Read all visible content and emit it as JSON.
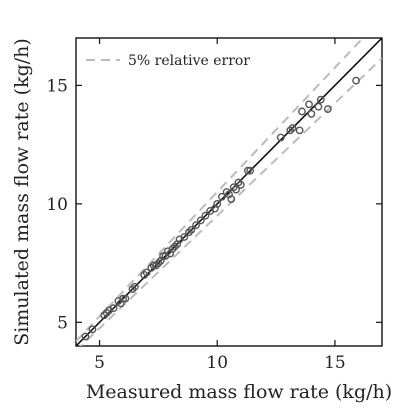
{
  "chart_data": {
    "type": "scatter",
    "title": "",
    "xlabel": "Measured mass flow rate (kg/h)",
    "ylabel": "Simulated mass flow rate (kg/h)",
    "xlim": [
      4,
      17
    ],
    "ylim": [
      4,
      17
    ],
    "xticks": [
      5,
      10,
      15
    ],
    "yticks": [
      5,
      10,
      15
    ],
    "tick_labels": {
      "x": [
        "5",
        "10",
        "15"
      ],
      "y": [
        "5",
        "10",
        "15"
      ]
    },
    "grid": false,
    "legend": {
      "placement": "top-left",
      "entries": [
        "5% relative error"
      ]
    },
    "reference_lines": [
      {
        "type": "identity",
        "slope": 1.0,
        "style": "solid",
        "color": "#111111"
      },
      {
        "type": "upper-bound",
        "slope": 1.05,
        "style": "dashed",
        "color": "#bbbbbb",
        "legend": "5% relative error"
      },
      {
        "type": "lower-bound",
        "slope": 0.95,
        "style": "dashed",
        "color": "#bbbbbb"
      }
    ],
    "series": [
      {
        "marker": "circle",
        "color": "#555555",
        "x": [
          4.4,
          4.7,
          5.2,
          5.3,
          5.4,
          5.6,
          5.8,
          5.9,
          6.0,
          6.1,
          6.4,
          6.5,
          6.9,
          7.0,
          7.2,
          7.3,
          7.4,
          7.5,
          7.6,
          7.7,
          7.8,
          7.9,
          8.0,
          8.1,
          8.2,
          8.3,
          8.4,
          8.6,
          8.8,
          8.9,
          9.1,
          9.3,
          9.5,
          9.7,
          9.9,
          10.0,
          10.2,
          10.4,
          10.5,
          10.6,
          10.7,
          10.8,
          10.9,
          11.0,
          11.3,
          11.4,
          12.7,
          13.1,
          13.2,
          13.5,
          13.6,
          13.9,
          14.0,
          14.3,
          14.4,
          14.7,
          15.9
        ],
        "y": [
          4.4,
          4.7,
          5.3,
          5.4,
          5.5,
          5.6,
          5.9,
          5.8,
          6.0,
          6.0,
          6.4,
          6.5,
          7.0,
          7.1,
          7.3,
          7.4,
          7.4,
          7.5,
          7.6,
          7.8,
          7.8,
          8.0,
          7.9,
          8.1,
          8.2,
          8.3,
          8.5,
          8.6,
          8.8,
          8.9,
          9.1,
          9.3,
          9.5,
          9.7,
          9.8,
          10.0,
          10.3,
          10.5,
          10.4,
          10.2,
          10.7,
          10.6,
          10.9,
          10.8,
          11.4,
          11.4,
          12.8,
          13.1,
          13.2,
          13.1,
          13.9,
          14.2,
          13.8,
          14.1,
          14.4,
          14.0,
          15.2
        ]
      }
    ]
  }
}
